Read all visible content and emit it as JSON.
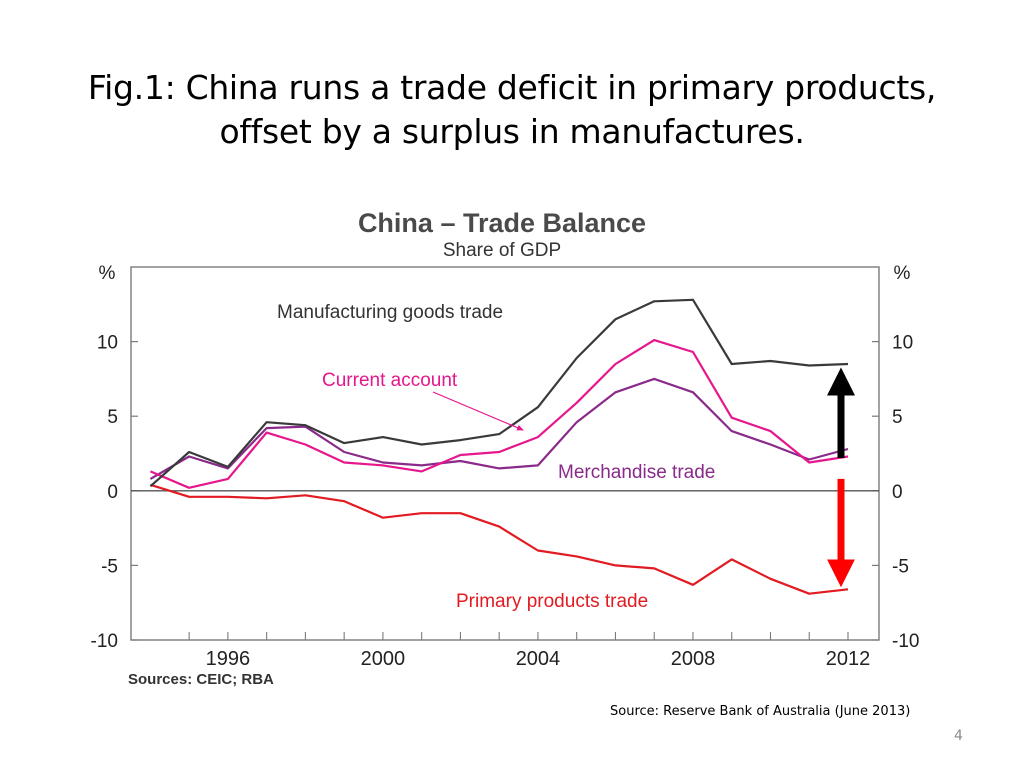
{
  "slide": {
    "title_line1": "Fig.1: China runs a trade deficit in primary products,",
    "title_line2": "offset by a surplus in manufactures.",
    "source_note": "Source: Reserve Bank of Australia (June 2013)",
    "page_number": "4"
  },
  "chart_data": {
    "type": "line",
    "title": "China – Trade Balance",
    "subtitle": "Share of GDP",
    "ylabel_left": "%",
    "ylabel_right": "%",
    "ylim": [
      -10,
      15
    ],
    "xlim": [
      1993.5,
      2012.8
    ],
    "yticks": [
      10,
      5,
      0,
      -5,
      -10
    ],
    "ytick_labels": [
      "10",
      "5",
      "0",
      "-5",
      "-10"
    ],
    "xticks": [
      1996,
      2000,
      2004,
      2008,
      2012
    ],
    "xtick_labels": [
      "1996",
      "2000",
      "2004",
      "2008",
      "2012"
    ],
    "grid": false,
    "source": "Sources: CEIC; RBA",
    "series": [
      {
        "name": "Manufacturing goods trade",
        "color": "#3a3a3a",
        "x": [
          1994,
          1995,
          1996,
          1997,
          1998,
          1999,
          2000,
          2001,
          2002,
          2003,
          2004,
          2005,
          2006,
          2007,
          2008,
          2009,
          2010,
          2011,
          2012
        ],
        "values": [
          0.3,
          2.6,
          1.6,
          4.6,
          4.4,
          3.2,
          3.6,
          3.1,
          3.4,
          3.8,
          5.6,
          8.9,
          11.5,
          12.7,
          12.8,
          8.5,
          8.7,
          8.4,
          8.5
        ]
      },
      {
        "name": "Current account",
        "color": "#e6178c",
        "x": [
          1994,
          1995,
          1996,
          1997,
          1998,
          1999,
          2000,
          2001,
          2002,
          2003,
          2004,
          2005,
          2006,
          2007,
          2008,
          2009,
          2010,
          2011,
          2012
        ],
        "values": [
          1.3,
          0.2,
          0.8,
          3.9,
          3.1,
          1.9,
          1.7,
          1.3,
          2.4,
          2.6,
          3.6,
          5.9,
          8.5,
          10.1,
          9.3,
          4.9,
          4.0,
          1.9,
          2.3
        ]
      },
      {
        "name": "Merchandise trade",
        "color": "#8a2a8a",
        "x": [
          1994,
          1995,
          1996,
          1997,
          1998,
          1999,
          2000,
          2001,
          2002,
          2003,
          2004,
          2005,
          2006,
          2007,
          2008,
          2009,
          2010,
          2011,
          2012
        ],
        "values": [
          0.8,
          2.3,
          1.5,
          4.2,
          4.3,
          2.6,
          1.9,
          1.7,
          2.0,
          1.5,
          1.7,
          4.6,
          6.6,
          7.5,
          6.6,
          4.0,
          3.1,
          2.1,
          2.8
        ]
      },
      {
        "name": "Primary products trade",
        "color": "#e21b22",
        "x": [
          1994,
          1995,
          1996,
          1997,
          1998,
          1999,
          2000,
          2001,
          2002,
          2003,
          2004,
          2005,
          2006,
          2007,
          2008,
          2009,
          2010,
          2011,
          2012
        ],
        "values": [
          0.4,
          -0.4,
          -0.4,
          -0.5,
          -0.3,
          -0.7,
          -1.8,
          -1.5,
          -1.5,
          -2.4,
          -4.0,
          -4.4,
          -5.0,
          -5.2,
          -6.3,
          -4.6,
          -5.9,
          -6.9,
          -6.6
        ]
      }
    ],
    "annotations": [
      {
        "type": "arrow",
        "direction": "up",
        "color": "#000000",
        "x": 2012,
        "from": 2.2,
        "to": 8.4
      },
      {
        "type": "arrow",
        "direction": "down",
        "color": "#ff0000",
        "x": 2012,
        "from": 0.8,
        "to": -6.6
      }
    ]
  }
}
